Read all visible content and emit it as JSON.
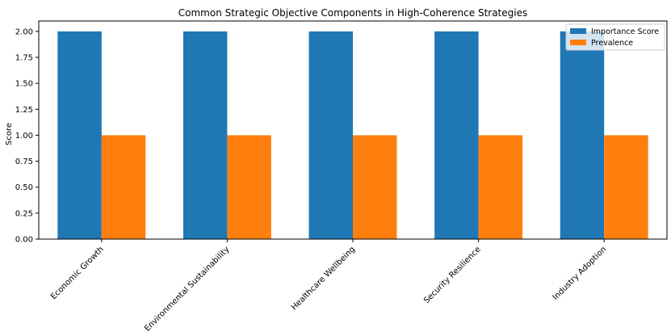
{
  "chart_data": {
    "type": "bar",
    "title": "Common Strategic Objective Components in High-Coherence Strategies",
    "xlabel": "",
    "ylabel": "Score",
    "categories": [
      "Economic Growth",
      "Environmental Sustainability",
      "Healthcare Wellbeing",
      "Security Resilience",
      "Industry Adoption"
    ],
    "series": [
      {
        "name": "Importance Score",
        "values": [
          2,
          2,
          2,
          2,
          2
        ],
        "color": "#1f77b4"
      },
      {
        "name": "Prevalence",
        "values": [
          1,
          1,
          1,
          1,
          1
        ],
        "color": "#ff7f0e"
      }
    ],
    "ylim": [
      0,
      2.1
    ],
    "yticks": [
      "0.00",
      "0.25",
      "0.50",
      "0.75",
      "1.00",
      "1.25",
      "1.50",
      "1.75",
      "2.00"
    ],
    "grid": false,
    "legend_position": "top-right"
  }
}
